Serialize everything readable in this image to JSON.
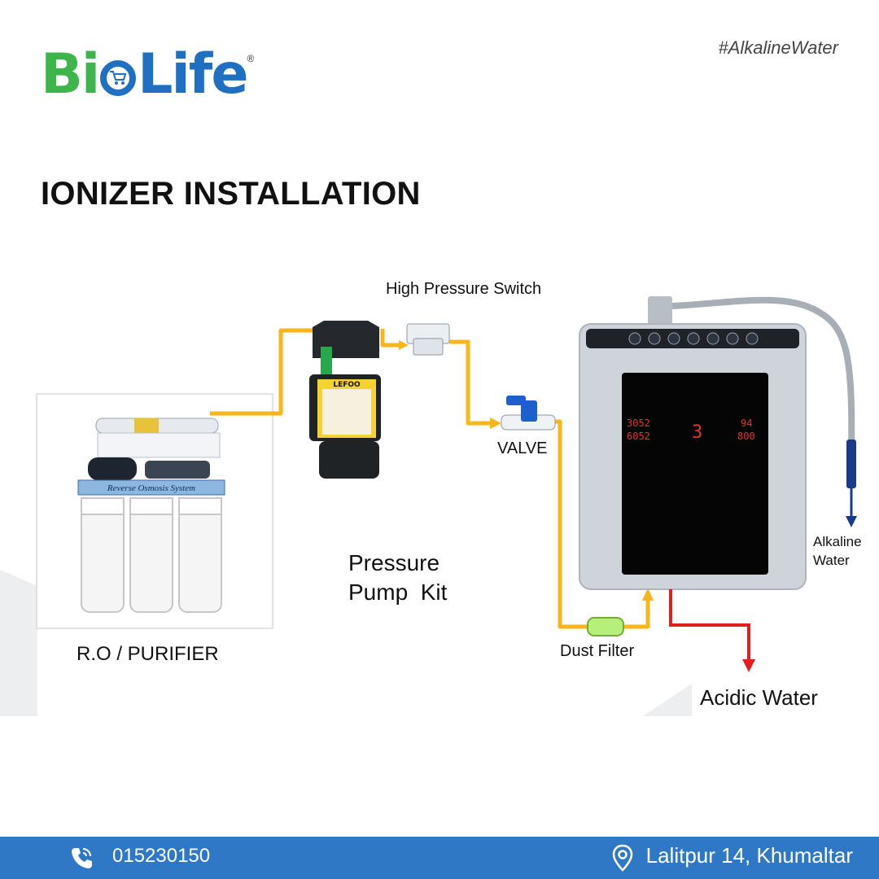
{
  "brand": {
    "logo_text_part1": "Bi",
    "logo_text_part2": "Life",
    "registered_mark": "®",
    "primary_color": "#1f6fc2",
    "secondary_color": "#3db54a"
  },
  "hashtag": "#AlkalineWater",
  "title": "IONIZER INSTALLATION",
  "diagram": {
    "labels": {
      "ro_purifier": "R.O / PURIFIER",
      "pressure_pump_line1": "Pressure",
      "pressure_pump_line2": "Pump  Kit",
      "high_pressure_switch": "High Pressure Switch",
      "valve": "VALVE",
      "dust_filter": "Dust Filter",
      "alkaline_line1": "Alkaline",
      "alkaline_line2": "Water",
      "acidic_water": "Acidic Water"
    },
    "ro_banner_text": "Reverse Osmosis System",
    "pump_brand_text": "LEFOO",
    "display": {
      "left_top": "3052",
      "left_bottom": "6052",
      "center_digit": "3",
      "right_top": "94",
      "right_bottom": "800"
    },
    "colors": {
      "pipe": "#f7b61b",
      "alkaline_arrow": "#1a3a8a",
      "acidic_arrow": "#e0201b",
      "dust_filter": "#b6f07a",
      "display_digits": "#e8322b"
    }
  },
  "footer": {
    "phone": "015230150",
    "address": "Lalitpur 14, Khumaltar",
    "icons": [
      "phone-icon",
      "location-pin-icon"
    ],
    "background": "#2e78c6"
  }
}
